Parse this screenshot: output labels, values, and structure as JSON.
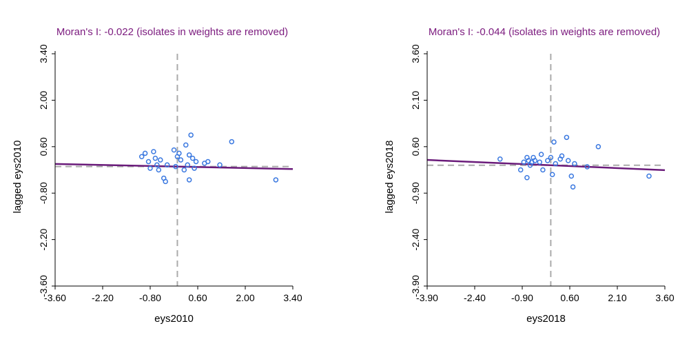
{
  "colors": {
    "title": "#7b1a7e",
    "regression": "#6a1b7a",
    "points": "#3a78e0",
    "reference": "#aaaaaa",
    "axis": "#000000"
  },
  "chart_data": [
    {
      "type": "scatter",
      "title": "Moran's I: -0.022 (isolates in weights are removed)",
      "xlabel": "eys2010",
      "ylabel": "lagged eys2010",
      "xlim": [
        -3.6,
        3.4
      ],
      "ylim": [
        -3.6,
        3.4
      ],
      "xticks": [
        "-3.60",
        "-2.20",
        "-0.80",
        "0.60",
        "2.00",
        "3.40"
      ],
      "yticks": [
        "-3.60",
        "-2.20",
        "-0.80",
        "0.60",
        "2.00",
        "3.40"
      ],
      "reference_lines": {
        "x": 0.0,
        "y": -0.0
      },
      "regression": {
        "intercept": 0.0,
        "slope": -0.022
      },
      "points": [
        {
          "x": -1.05,
          "y": 0.3
        },
        {
          "x": -0.95,
          "y": 0.4
        },
        {
          "x": -0.85,
          "y": 0.15
        },
        {
          "x": -0.8,
          "y": -0.05
        },
        {
          "x": -0.7,
          "y": 0.45
        },
        {
          "x": -0.65,
          "y": 0.25
        },
        {
          "x": -0.6,
          "y": 0.05
        },
        {
          "x": -0.55,
          "y": -0.1
        },
        {
          "x": -0.5,
          "y": 0.2
        },
        {
          "x": -0.4,
          "y": -0.35
        },
        {
          "x": -0.35,
          "y": -0.45
        },
        {
          "x": -0.3,
          "y": 0.05
        },
        {
          "x": -0.1,
          "y": 0.5
        },
        {
          "x": -0.05,
          "y": 0.0
        },
        {
          "x": 0.0,
          "y": 0.3
        },
        {
          "x": 0.05,
          "y": 0.4
        },
        {
          "x": 0.1,
          "y": 0.2
        },
        {
          "x": 0.2,
          "y": -0.1
        },
        {
          "x": 0.25,
          "y": 0.65
        },
        {
          "x": 0.3,
          "y": 0.05
        },
        {
          "x": 0.35,
          "y": 0.35
        },
        {
          "x": 0.35,
          "y": -0.4
        },
        {
          "x": 0.4,
          "y": 0.95
        },
        {
          "x": 0.45,
          "y": 0.25
        },
        {
          "x": 0.5,
          "y": -0.05
        },
        {
          "x": 0.55,
          "y": 0.15
        },
        {
          "x": 0.8,
          "y": 0.1
        },
        {
          "x": 0.9,
          "y": 0.15
        },
        {
          "x": 1.25,
          "y": 0.05
        },
        {
          "x": 1.6,
          "y": 0.75
        },
        {
          "x": 2.9,
          "y": -0.4
        }
      ]
    },
    {
      "type": "scatter",
      "title": "Moran's I: -0.044 (isolates in weights are removed)",
      "xlabel": "eys2018",
      "ylabel": "lagged eys2018",
      "xlim": [
        -3.9,
        3.6
      ],
      "ylim": [
        -3.9,
        3.6
      ],
      "xticks": [
        "-3.90",
        "-2.40",
        "-0.90",
        "0.60",
        "2.10",
        "3.60"
      ],
      "yticks": [
        "-3.90",
        "-2.40",
        "-0.90",
        "0.60",
        "2.10",
        "3.60"
      ],
      "reference_lines": {
        "x": 0.0,
        "y": -0.0
      },
      "regression": {
        "intercept": 0.0,
        "slope": -0.044
      },
      "points": [
        {
          "x": -1.6,
          "y": 0.2
        },
        {
          "x": -0.95,
          "y": -0.15
        },
        {
          "x": -0.85,
          "y": 0.1
        },
        {
          "x": -0.75,
          "y": 0.25
        },
        {
          "x": -0.7,
          "y": 0.15
        },
        {
          "x": -0.65,
          "y": 0.0
        },
        {
          "x": -0.6,
          "y": 0.1
        },
        {
          "x": -0.55,
          "y": 0.25
        },
        {
          "x": -0.5,
          "y": 0.15
        },
        {
          "x": -0.75,
          "y": -0.4
        },
        {
          "x": -0.35,
          "y": 0.1
        },
        {
          "x": -0.3,
          "y": 0.35
        },
        {
          "x": -0.25,
          "y": -0.15
        },
        {
          "x": -0.1,
          "y": 0.15
        },
        {
          "x": 0.0,
          "y": 0.25
        },
        {
          "x": 0.05,
          "y": -0.3
        },
        {
          "x": 0.1,
          "y": 0.75
        },
        {
          "x": 0.15,
          "y": 0.05
        },
        {
          "x": 0.3,
          "y": 0.2
        },
        {
          "x": 0.35,
          "y": 0.3
        },
        {
          "x": 0.5,
          "y": 0.9
        },
        {
          "x": 0.55,
          "y": 0.15
        },
        {
          "x": 0.65,
          "y": -0.35
        },
        {
          "x": 0.7,
          "y": -0.7
        },
        {
          "x": 0.75,
          "y": 0.05
        },
        {
          "x": 1.15,
          "y": -0.05
        },
        {
          "x": 1.5,
          "y": 0.6
        },
        {
          "x": 3.1,
          "y": -0.35
        }
      ]
    }
  ]
}
